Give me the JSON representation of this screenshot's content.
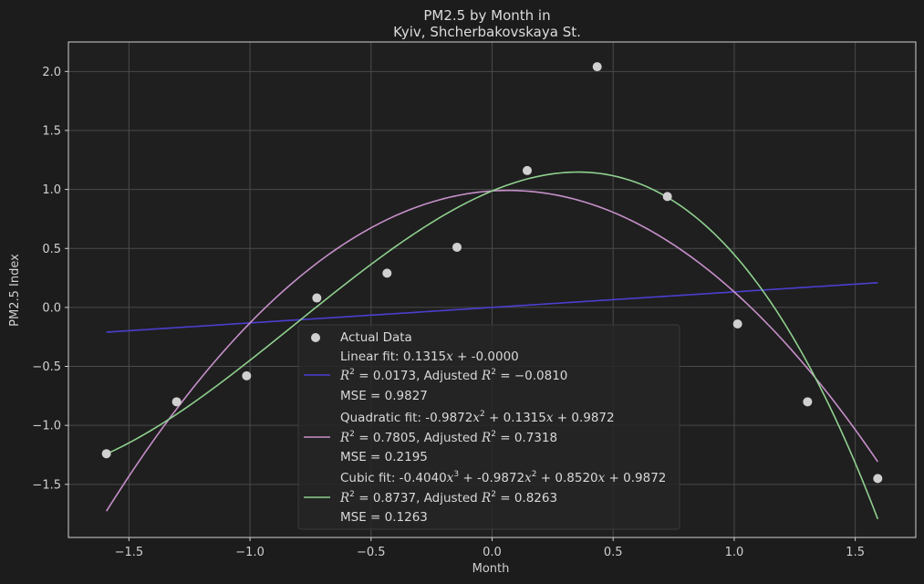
{
  "chart_data": {
    "type": "scatter",
    "title_lines": [
      "PM2.5 by Month in",
      "Kyiv, Shcherbakovskaya St."
    ],
    "xlabel": "Month",
    "ylabel": "PM2.5 Index",
    "xlim": [
      -1.75,
      1.75
    ],
    "ylim": [
      -1.95,
      2.25
    ],
    "x_ticks": [
      -1.5,
      -1.0,
      -0.5,
      0.0,
      0.5,
      1.0,
      1.5
    ],
    "x_tick_labels": [
      "−1.5",
      "−1.0",
      "−0.5",
      "0.0",
      "0.5",
      "1.0",
      "1.5"
    ],
    "y_ticks": [
      -1.5,
      -1.0,
      -0.5,
      0.0,
      0.5,
      1.0,
      1.5,
      2.0
    ],
    "y_tick_labels": [
      "−1.5",
      "−1.0",
      "−0.5",
      "0.0",
      "0.5",
      "1.0",
      "1.5",
      "2.0"
    ],
    "grid": true,
    "legend_position": "lower-center",
    "points": {
      "name": "Actual Data",
      "color": "#d0d0d0",
      "x": [
        -1.593,
        -1.303,
        -1.014,
        -0.724,
        -0.434,
        -0.145,
        0.145,
        0.434,
        0.724,
        1.014,
        1.303,
        1.593
      ],
      "y": [
        -1.24,
        -0.8,
        -0.58,
        0.08,
        0.29,
        0.51,
        1.16,
        2.04,
        0.94,
        -0.14,
        -0.8,
        -1.45
      ]
    },
    "fits": [
      {
        "key": "linear",
        "color": "#4b3fd0",
        "coef": [
          0.0,
          0.1315,
          0.0,
          0.0
        ],
        "label_lines": [
          "Linear fit: 0.1315x + -0.0000",
          "R2 = 0.0173, Adjusted R2 = −0.0810",
          "MSE = 0.9827"
        ]
      },
      {
        "key": "quadratic",
        "color": "#c68fc9",
        "coef": [
          0.9872,
          0.1315,
          -0.9872,
          0.0
        ],
        "label_lines": [
          "Quadratic fit: -0.9872x2 + 0.1315x + 0.9872",
          "R2 = 0.7805, Adjusted R2 = 0.7318",
          "MSE = 0.2195"
        ]
      },
      {
        "key": "cubic",
        "color": "#8fd08f",
        "coef": [
          0.9872,
          0.852,
          -0.9872,
          -0.404
        ],
        "label_lines": [
          "Cubic fit: -0.4040x3 + -0.9872x2 + 0.8520x + 0.9872",
          "R2 = 0.8737, Adjusted R2 = 0.8263",
          "MSE = 0.1263"
        ]
      }
    ]
  },
  "legend": {
    "data_label": "Actual Data",
    "linear": {
      "line1": "Linear fit: 0.1315",
      "line1_var": "x",
      "line1_rest": " + -0.0000",
      "r2": "0.0173",
      "adj": "−0.0810",
      "mse": "MSE = 0.9827"
    },
    "quadratic": {
      "line1_a": "Quadratic fit: -0.9872",
      "line1_b": " + 0.1315",
      "line1_c": " + 0.9872",
      "r2": "0.7805",
      "adj": "0.7318",
      "mse": "MSE = 0.2195"
    },
    "cubic": {
      "line1_a": "Cubic fit: -0.4040",
      "line1_b": " + -0.9872",
      "line1_c": " + 0.8520",
      "line1_d": " + 0.9872",
      "r2": "0.8737",
      "adj": "0.8263",
      "mse": "MSE = 0.1263"
    },
    "r_sym": "R",
    "sup2": "2",
    "sup3": "3",
    "var_x": "x",
    "eq_r2_prefix": " = ",
    "adjusted_word": ", Adjusted "
  }
}
